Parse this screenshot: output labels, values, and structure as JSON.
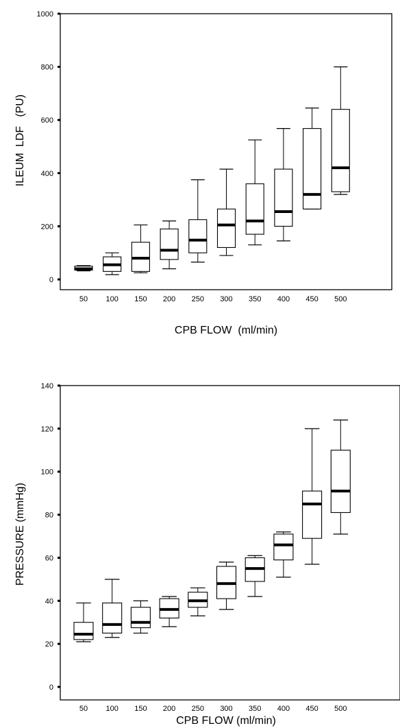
{
  "chart_data": [
    {
      "type": "box",
      "xlabel": "CPB FLOW  (ml/min)",
      "ylabel": "ILEUM  LDF   (PU)",
      "ylim": [
        0,
        1000
      ],
      "yticks": [
        "0",
        "200",
        "400",
        "600",
        "800",
        "1000"
      ],
      "categories": [
        "50",
        "100",
        "150",
        "200",
        "250",
        "300",
        "350",
        "400",
        "450",
        "500"
      ],
      "boxes": [
        {
          "min": 32,
          "q1": 35,
          "median": 40,
          "q3": 50,
          "max": 52
        },
        {
          "min": 18,
          "q1": 30,
          "median": 55,
          "q3": 85,
          "max": 100
        },
        {
          "min": 25,
          "q1": 30,
          "median": 80,
          "q3": 140,
          "max": 205
        },
        {
          "min": 40,
          "q1": 75,
          "median": 110,
          "q3": 190,
          "max": 220
        },
        {
          "min": 65,
          "q1": 100,
          "median": 148,
          "q3": 225,
          "max": 375
        },
        {
          "min": 90,
          "q1": 120,
          "median": 205,
          "q3": 265,
          "max": 415
        },
        {
          "min": 130,
          "q1": 170,
          "median": 220,
          "q3": 360,
          "max": 525
        },
        {
          "min": 145,
          "q1": 200,
          "median": 255,
          "q3": 415,
          "max": 568
        },
        {
          "min": 265,
          "q1": 265,
          "median": 320,
          "q3": 568,
          "max": 645
        },
        {
          "min": 320,
          "q1": 330,
          "median": 420,
          "q3": 640,
          "max": 800
        }
      ],
      "grid": false
    },
    {
      "type": "box",
      "xlabel": "CPB FLOW (ml/min)",
      "ylabel": "PRESSURE (mmHg)",
      "ylim": [
        0,
        140
      ],
      "yticks": [
        "0",
        "20",
        "40",
        "60",
        "80",
        "100",
        "120",
        "140"
      ],
      "categories": [
        "50",
        "100",
        "150",
        "200",
        "250",
        "300",
        "350",
        "400",
        "450",
        "500"
      ],
      "boxes": [
        {
          "min": 21,
          "q1": 22,
          "median": 24.5,
          "q3": 30,
          "max": 39
        },
        {
          "min": 23,
          "q1": 25,
          "median": 29,
          "q3": 39,
          "max": 50
        },
        {
          "min": 25,
          "q1": 27.5,
          "median": 30,
          "q3": 37,
          "max": 40
        },
        {
          "min": 28,
          "q1": 32,
          "median": 36,
          "q3": 41,
          "max": 42
        },
        {
          "min": 33,
          "q1": 37,
          "median": 40,
          "q3": 44,
          "max": 46
        },
        {
          "min": 36,
          "q1": 41,
          "median": 48,
          "q3": 56,
          "max": 58
        },
        {
          "min": 42,
          "q1": 49,
          "median": 55,
          "q3": 60,
          "max": 61
        },
        {
          "min": 51,
          "q1": 59,
          "median": 66,
          "q3": 71,
          "max": 72
        },
        {
          "min": 57,
          "q1": 69,
          "median": 85,
          "q3": 91,
          "max": 120
        },
        {
          "min": 71,
          "q1": 81,
          "median": 91,
          "q3": 110,
          "max": 124
        }
      ],
      "grid": false
    }
  ]
}
